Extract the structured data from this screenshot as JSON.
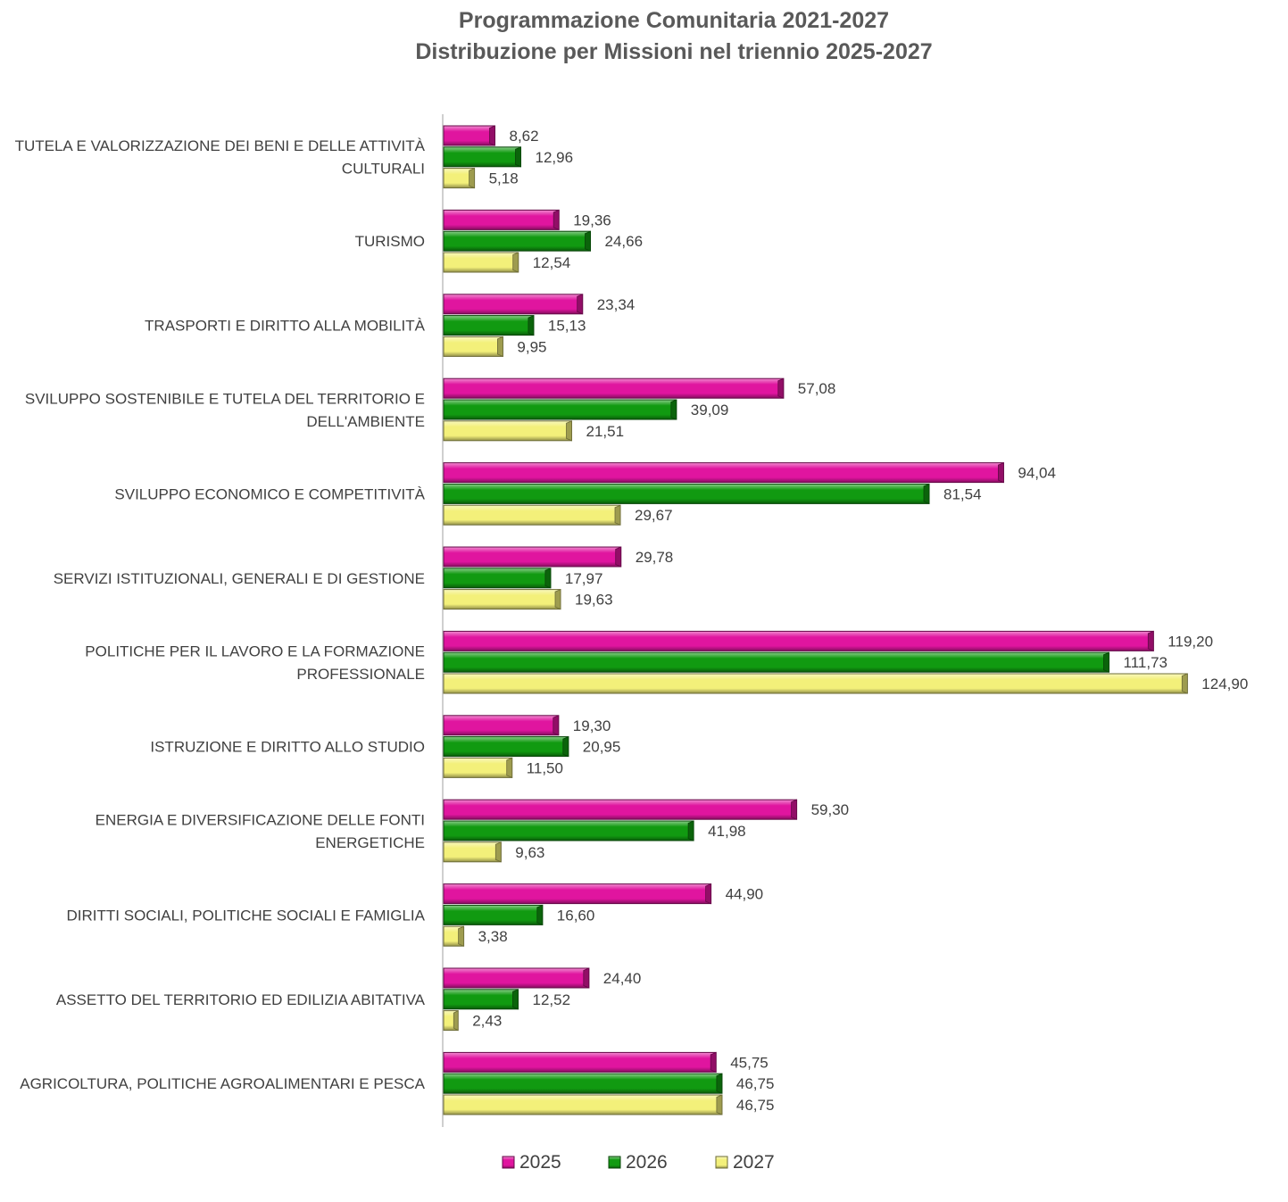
{
  "chart_data": {
    "type": "bar",
    "orientation": "horizontal",
    "title_lines": [
      "Programmazione Comunitaria 2021-2027",
      "Distribuzione per Missioni nel triennio 2025-2027"
    ],
    "categories": [
      [
        "TUTELA E VALORIZZAZIONE DEI BENI E DELLE ATTIVITÀ",
        "CULTURALI"
      ],
      [
        "TURISMO"
      ],
      [
        "TRASPORTI E DIRITTO ALLA MOBILITÀ"
      ],
      [
        "SVILUPPO SOSTENIBILE E TUTELA DEL TERRITORIO E",
        "DELL'AMBIENTE"
      ],
      [
        "SVILUPPO ECONOMICO E COMPETITIVITÀ"
      ],
      [
        "SERVIZI ISTITUZIONALI, GENERALI E DI GESTIONE"
      ],
      [
        "POLITICHE PER IL LAVORO E LA FORMAZIONE",
        "PROFESSIONALE"
      ],
      [
        "ISTRUZIONE E DIRITTO ALLO STUDIO"
      ],
      [
        "ENERGIA E DIVERSIFICAZIONE DELLE FONTI",
        "ENERGETICHE"
      ],
      [
        "DIRITTI SOCIALI, POLITICHE SOCIALI E FAMIGLIA"
      ],
      [
        "ASSETTO DEL TERRITORIO ED EDILIZIA ABITATIVA"
      ],
      [
        "AGRICOLTURA, POLITICHE AGROALIMENTARI E PESCA"
      ]
    ],
    "series": [
      {
        "name": "2025",
        "color": "#E0159F",
        "values": [
          8.62,
          19.36,
          23.34,
          57.08,
          94.04,
          29.78,
          119.2,
          19.3,
          59.3,
          44.9,
          24.4,
          45.75
        ],
        "labels": [
          "8,62",
          "19,36",
          "23,34",
          "57,08",
          "94,04",
          "29,78",
          "119,20",
          "19,30",
          "59,30",
          "44,90",
          "24,40",
          "45,75"
        ]
      },
      {
        "name": "2026",
        "color": "#119A11",
        "values": [
          12.96,
          24.66,
          15.13,
          39.09,
          81.54,
          17.97,
          111.73,
          20.95,
          41.98,
          16.6,
          12.52,
          46.75
        ],
        "labels": [
          "12,96",
          "24,66",
          "15,13",
          "39,09",
          "81,54",
          "17,97",
          "111,73",
          "20,95",
          "41,98",
          "16,60",
          "12,52",
          "46,75"
        ]
      },
      {
        "name": "2027",
        "color": "#F3F07A",
        "values": [
          5.18,
          12.54,
          9.95,
          21.51,
          29.67,
          19.63,
          124.9,
          11.5,
          9.63,
          3.38,
          2.43,
          46.75
        ],
        "labels": [
          "5,18",
          "12,54",
          "9,95",
          "21,51",
          "29,67",
          "19,63",
          "124,90",
          "11,50",
          "9,63",
          "3,38",
          "2,43",
          "46,75"
        ]
      }
    ],
    "xlim": [
      0,
      125
    ],
    "axis_visible": false,
    "grid": false,
    "legend_position": "bottom",
    "data_labels": true
  }
}
